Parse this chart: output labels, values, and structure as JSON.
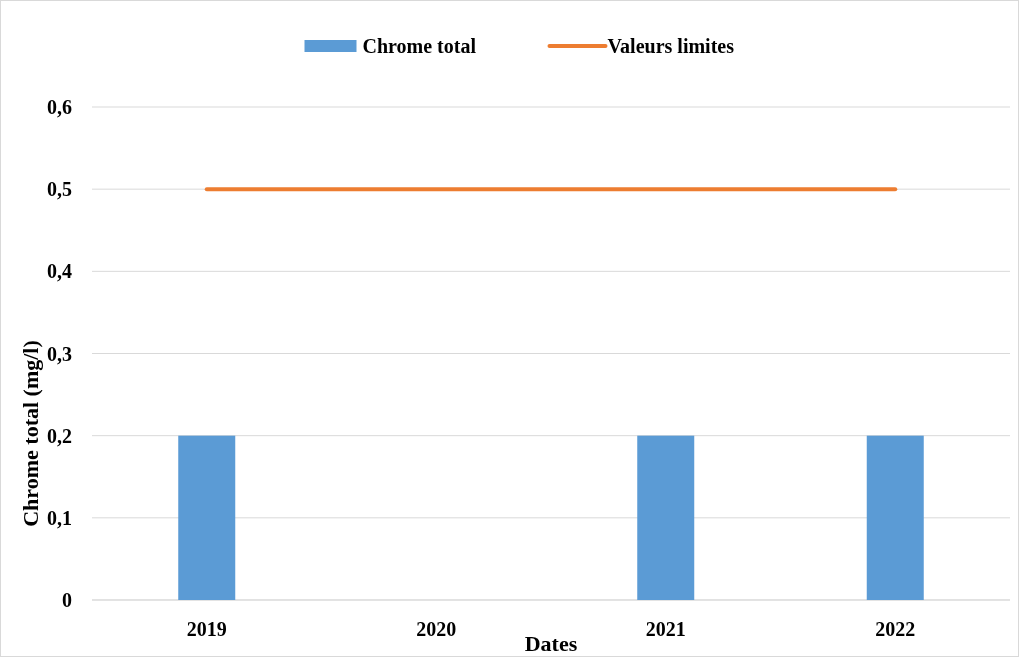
{
  "chart_data": {
    "type": "bar",
    "xlabel": "Dates",
    "ylabel": "Chrome total (mg/l)",
    "categories": [
      "2019",
      "2020",
      "2021",
      "2022"
    ],
    "series": [
      {
        "name": "Chrome total",
        "color": "#5b9bd5",
        "values": [
          0.2,
          0,
          0.2,
          0.2
        ]
      },
      {
        "name": "Valeurs limites",
        "type": "line",
        "color": "#ed7d31",
        "values": [
          0.5,
          0.5,
          0.5,
          0.5
        ]
      }
    ],
    "ylim": [
      0,
      0.6
    ],
    "yticks": [
      {
        "value": 0,
        "label": "0"
      },
      {
        "value": 0.1,
        "label": "0,1"
      },
      {
        "value": 0.2,
        "label": "0,2"
      },
      {
        "value": 0.3,
        "label": "0,3"
      },
      {
        "value": 0.4,
        "label": "0,4"
      },
      {
        "value": 0.5,
        "label": "0,5"
      },
      {
        "value": 0.6,
        "label": "0,6"
      }
    ],
    "grid": "y",
    "legend": "top",
    "marker": "none",
    "line_style": "solid"
  }
}
